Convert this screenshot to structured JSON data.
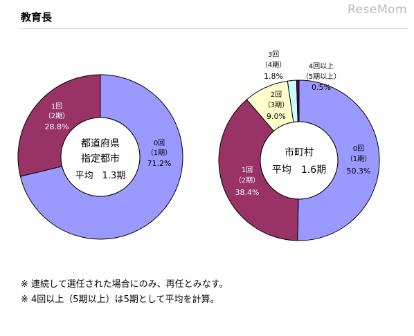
{
  "section_title": "教育長",
  "watermark": "ReseMom",
  "notes": [
    "※ 連続して選任された場合にのみ、再任とみなす。",
    "※ 4回以上（5期以上）は5期として平均を計算。"
  ],
  "colors": {
    "zero": "#9999ff",
    "one": "#993366",
    "two": "#ffffcc",
    "three": "#ccffff",
    "four_plus": "#660066",
    "stroke": "#000000"
  },
  "chart_data": [
    {
      "type": "pie",
      "variant": "donut",
      "center_text": [
        "都道府県",
        "指定都市",
        "平均　1.3期"
      ],
      "slices": [
        {
          "key": "zero",
          "label": [
            "0回",
            "（1期）",
            "71.2%"
          ],
          "value": 71.2
        },
        {
          "key": "one",
          "label": [
            "1回",
            "（2期）",
            "28.8%"
          ],
          "value": 28.8
        }
      ]
    },
    {
      "type": "pie",
      "variant": "donut",
      "center_text": [
        "市町村",
        "平均　1.6期"
      ],
      "slices": [
        {
          "key": "zero",
          "label": [
            "0回",
            "（1期）",
            "50.3%"
          ],
          "value": 50.3
        },
        {
          "key": "one",
          "label": [
            "1回",
            "（2期）",
            "38.4%"
          ],
          "value": 38.4
        },
        {
          "key": "two",
          "label": [
            "2回",
            "（3期）",
            "9.0%"
          ],
          "value": 9.0
        },
        {
          "key": "three",
          "label": [
            "3回",
            "（4期）",
            "1.8%"
          ],
          "value": 1.8
        },
        {
          "key": "four_plus",
          "label": [
            "4回以上",
            "（5期以上）",
            "0.5%"
          ],
          "value": 0.5
        }
      ]
    }
  ]
}
